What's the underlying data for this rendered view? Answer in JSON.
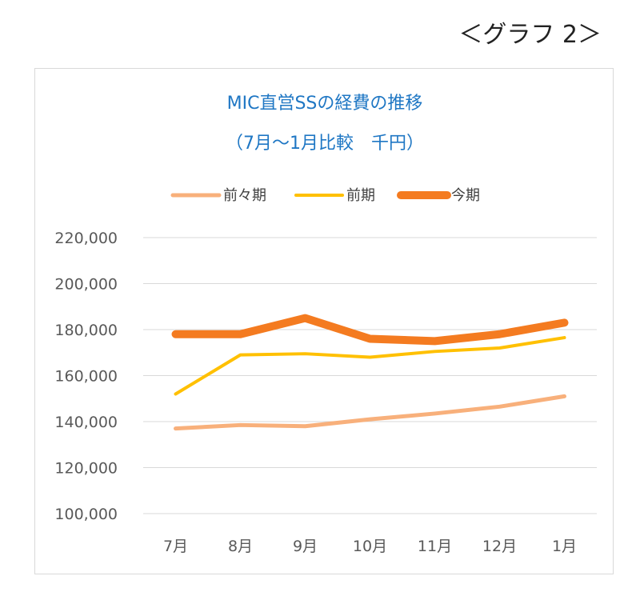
{
  "page_label": "＜グラフ 2＞",
  "chart_data": {
    "type": "line",
    "title": "MIC直営SSの経費の推移",
    "subtitle": "（7月～1月比較　千円）",
    "categories": [
      "7月",
      "8月",
      "9月",
      "10月",
      "11月",
      "12月",
      "1月"
    ],
    "ylim": [
      100000,
      220000
    ],
    "yticks": [
      100000,
      120000,
      140000,
      160000,
      180000,
      200000,
      220000
    ],
    "ytick_labels": [
      "100,000",
      "120,000",
      "140,000",
      "160,000",
      "180,000",
      "200,000",
      "220,000"
    ],
    "grid": true,
    "legend_position": "top",
    "series": [
      {
        "name": "前々期",
        "color": "#f8b07b",
        "values": [
          137000,
          138500,
          138000,
          141000,
          143500,
          146500,
          151000
        ]
      },
      {
        "name": "前期",
        "color": "#ffc000",
        "values": [
          152000,
          169000,
          169500,
          168000,
          170500,
          172000,
          176500
        ]
      },
      {
        "name": "今期",
        "color": "#f47b20",
        "values": [
          178000,
          178000,
          185000,
          176000,
          175000,
          178000,
          183000
        ]
      }
    ]
  }
}
